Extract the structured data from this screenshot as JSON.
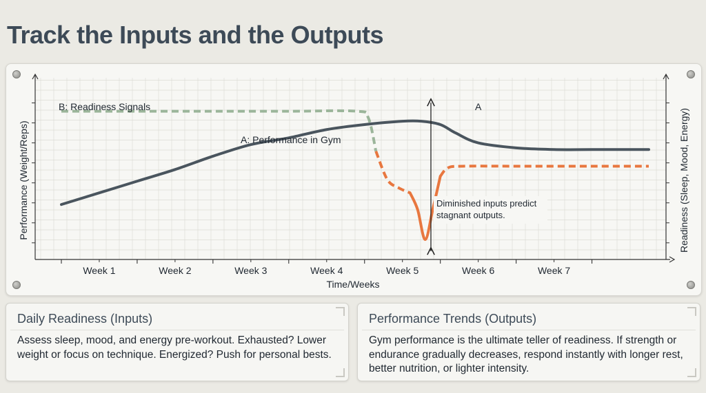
{
  "page_title": "Track the Inputs and the Outputs",
  "colors": {
    "performance": "#4a555e",
    "readiness_dashed_green": "#9bb59a",
    "readiness_orange": "#e8773f",
    "grid": "#dcdcd6"
  },
  "chart_data": {
    "type": "line",
    "xlabel": "Time/Weeks",
    "ylabel_left": "Performance (Weight/Reps)",
    "ylabel_right": "Readiness (Sleep, Mood, Energy)",
    "categories": [
      "Week 1",
      "Week 2",
      "Week 3",
      "Week 4",
      "Week 5",
      "Week 6",
      "Week 7"
    ],
    "xlim": [
      0,
      7.75
    ],
    "ylim": [
      0,
      100
    ],
    "grid": true,
    "series": [
      {
        "name": "A: Performance in Gym",
        "end_label": "A",
        "style": "solid",
        "x": [
          0,
          0.5,
          1,
          1.5,
          2,
          2.5,
          3,
          3.5,
          4,
          4.5,
          4.75,
          5,
          5.2,
          5.5,
          6,
          6.5,
          7,
          7.5,
          7.75
        ],
        "y": [
          33,
          40,
          47,
          54,
          62,
          69,
          73,
          78,
          81,
          83,
          83,
          81,
          76,
          70,
          67,
          66,
          66,
          66,
          66
        ]
      },
      {
        "name": "B: Readiness Signals",
        "style": "dashed",
        "x": [
          0,
          1,
          2,
          3,
          3.9,
          4.05,
          4.15,
          4.3,
          4.45,
          4.6,
          4.7,
          4.8,
          4.9,
          5.0,
          5.1,
          5.3,
          6,
          7,
          7.75
        ],
        "y": [
          89,
          89,
          89,
          89,
          89,
          85,
          65,
          48,
          43,
          40,
          30,
          12,
          30,
          50,
          55,
          56,
          56,
          56,
          56
        ]
      }
    ],
    "annotations": [
      {
        "text": "Diminished inputs predict"
      },
      {
        "text": "stagnant outputs."
      }
    ]
  },
  "cards": [
    {
      "title": "Daily Readiness (Inputs)",
      "body": "Assess sleep, mood, and energy pre-workout. Exhausted? Lower weight or focus on technique. Energized? Push for personal bests."
    },
    {
      "title": "Performance Trends (Outputs)",
      "body": "Gym performance is the ultimate teller of readiness. If strength or endurance gradually decreases, respond instantly with longer rest, better nutrition, or lighter intensity."
    }
  ]
}
